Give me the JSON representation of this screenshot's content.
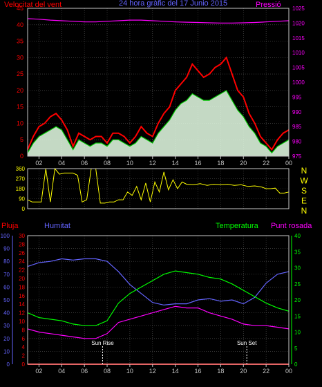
{
  "header": {
    "wind_title": "Velocitat del vent",
    "main_title": "24 hora gràfic del 17 Junio 2015",
    "pressure_title": "Pressió"
  },
  "bottom_header": {
    "rain": "Pluja",
    "humidity": "Humitat",
    "temperature": "Temperatura",
    "dew_point": "Punt rosada"
  },
  "colors": {
    "background": "#000000",
    "axis": "#c8c8c8",
    "grid": "#5a5a5a",
    "wind_axis": "#ff0000",
    "pressure_axis": "#ff00ff",
    "direction_axis": "#ffff00",
    "rain_axis": "#ff0000",
    "humidity_axis": "#6464ff",
    "temperature_axis": "#00ff00",
    "gust": "#ff0000",
    "wind_avg": "#00c800",
    "wind_fill": "#e6ffe6",
    "pressure": "#ff00ff",
    "direction": "#ffff00",
    "humidity": "#6464ff",
    "temperature": "#00ff00",
    "dew_point": "#ff00ff",
    "rain": "#ff0000"
  },
  "chart_data": [
    {
      "type": "line",
      "name": "wind-and-pressure",
      "title": "24 hora gràfic del 17 Junio 2015",
      "xlabel": "",
      "x_ticks": [
        "02",
        "04",
        "06",
        "08",
        "10",
        "12",
        "14",
        "16",
        "18",
        "20",
        "22",
        "00"
      ],
      "xlim": [
        1,
        24
      ],
      "y_left_label": "Velocitat del vent",
      "ylim_left": [
        0,
        45
      ],
      "y_left_ticks": [
        0,
        5,
        10,
        15,
        20,
        25,
        30,
        35,
        40,
        45
      ],
      "y_right_label": "Pressió",
      "ylim_right": [
        975,
        1025
      ],
      "y_right_ticks": [
        975,
        980,
        985,
        990,
        995,
        1000,
        1005,
        1010,
        1015,
        1020,
        1025
      ],
      "series": [
        {
          "name": "gust",
          "x": [
            1,
            1.5,
            2,
            2.5,
            3,
            3.5,
            4,
            4.5,
            5,
            5.5,
            6,
            6.5,
            7,
            7.5,
            8,
            8.5,
            9,
            9.5,
            10,
            10.5,
            11,
            11.5,
            12,
            12.5,
            13,
            13.5,
            14,
            14.5,
            15,
            15.5,
            16,
            16.5,
            17,
            17.5,
            18,
            18.5,
            19,
            19.5,
            20,
            20.5,
            21,
            21.5,
            22,
            22.5,
            23,
            23.5,
            24
          ],
          "values": [
            2,
            6,
            9,
            10,
            12,
            13,
            11,
            8,
            3,
            7,
            6,
            5,
            6,
            6,
            4,
            7,
            7,
            6,
            4,
            6,
            9,
            7,
            6,
            10,
            13,
            15,
            20,
            22,
            24,
            28,
            26,
            24,
            25,
            27,
            28,
            30,
            25,
            20,
            18,
            13,
            10,
            6,
            4,
            2,
            5,
            7,
            8
          ]
        },
        {
          "name": "average",
          "x": [
            1,
            1.5,
            2,
            2.5,
            3,
            3.5,
            4,
            4.5,
            5,
            5.5,
            6,
            6.5,
            7,
            7.5,
            8,
            8.5,
            9,
            9.5,
            10,
            10.5,
            11,
            11.5,
            12,
            12.5,
            13,
            13.5,
            14,
            14.5,
            15,
            15.5,
            16,
            16.5,
            17,
            17.5,
            18,
            18.5,
            19,
            19.5,
            20,
            20.5,
            21,
            21.5,
            22,
            22.5,
            23,
            23.5,
            24
          ],
          "values": [
            1,
            4,
            6,
            7,
            8,
            9,
            8,
            5,
            2,
            5,
            4,
            3,
            4,
            4,
            3,
            5,
            5,
            4,
            3,
            4,
            6,
            5,
            4,
            7,
            9,
            11,
            14,
            16,
            17,
            19,
            18,
            17,
            17,
            18,
            19,
            20,
            17,
            14,
            12,
            9,
            7,
            4,
            3,
            1,
            3,
            4,
            5
          ]
        },
        {
          "name": "pressure",
          "axis": "right",
          "x": [
            1,
            2,
            3,
            4,
            5,
            6,
            7,
            8,
            9,
            10,
            11,
            12,
            13,
            14,
            15,
            16,
            17,
            18,
            19,
            20,
            21,
            22,
            23,
            24
          ],
          "values": [
            1021.5,
            1021.3,
            1021.0,
            1020.8,
            1020.6,
            1020.4,
            1020.4,
            1020.6,
            1020.8,
            1021.0,
            1021.0,
            1020.8,
            1020.6,
            1020.4,
            1020.3,
            1020.2,
            1020.1,
            1020.0,
            1020.0,
            1020.1,
            1020.2,
            1020.4,
            1020.6,
            1020.8
          ]
        }
      ]
    },
    {
      "type": "line",
      "name": "wind-direction",
      "xlim": [
        1,
        24
      ],
      "ylim_left": [
        0,
        360
      ],
      "y_left_ticks": [
        0,
        90,
        180,
        270,
        360
      ],
      "y_right_ticks": [
        "N",
        "W",
        "S",
        "E",
        "N"
      ],
      "series": [
        {
          "name": "direction",
          "x": [
            1,
            1.4,
            1.8,
            2.2,
            2.6,
            3,
            3.4,
            3.8,
            4.2,
            4.6,
            5,
            5.4,
            5.8,
            6.2,
            6.6,
            7,
            7.4,
            7.8,
            8.2,
            8.6,
            9,
            9.4,
            9.8,
            10.2,
            10.6,
            11,
            11.4,
            11.8,
            12.2,
            12.6,
            13,
            13.4,
            13.8,
            14.2,
            14.6,
            15,
            15.6,
            16.2,
            16.8,
            17.4,
            18,
            18.6,
            19.2,
            19.8,
            20.4,
            21,
            21.6,
            22,
            22.4,
            22.8,
            23.2,
            23.6,
            24
          ],
          "values": [
            80,
            60,
            60,
            60,
            360,
            60,
            360,
            310,
            320,
            320,
            320,
            300,
            60,
            80,
            360,
            360,
            50,
            50,
            60,
            60,
            80,
            80,
            150,
            120,
            200,
            80,
            230,
            60,
            240,
            150,
            330,
            170,
            260,
            180,
            240,
            220,
            215,
            225,
            210,
            220,
            215,
            220,
            210,
            215,
            200,
            205,
            195,
            180,
            180,
            185,
            140,
            140,
            150
          ]
        }
      ]
    },
    {
      "type": "line",
      "name": "rain-humidity-temperature",
      "x_ticks": [
        "02",
        "04",
        "06",
        "08",
        "10",
        "12",
        "14",
        "16",
        "18",
        "20",
        "22",
        "00"
      ],
      "xlim": [
        1,
        24
      ],
      "y_left_label": "Pluja",
      "ylim_left": [
        0,
        30
      ],
      "y_left_ticks": [
        0,
        2,
        4,
        6,
        8,
        10,
        12,
        14,
        16,
        18,
        20,
        22,
        24,
        26,
        28,
        30
      ],
      "y_humidity_label": "Humitat",
      "ylim_humidity": [
        0,
        100
      ],
      "y_humidity_ticks": [
        0,
        10,
        20,
        30,
        40,
        50,
        60,
        70,
        80,
        90,
        100
      ],
      "y_right_label": "Temperatura",
      "ylim_right": [
        0,
        40
      ],
      "y_right_ticks": [
        0,
        5,
        10,
        15,
        20,
        25,
        30,
        35,
        40
      ],
      "dew_point_label": "Punt rosada",
      "annotations": [
        {
          "text": "Sun Rise",
          "x": 7.6
        },
        {
          "text": "Sun Set",
          "x": 20.3
        }
      ],
      "series": [
        {
          "name": "humidity",
          "axis": "humidity",
          "x": [
            1,
            2,
            3,
            4,
            5,
            6,
            7,
            8,
            9,
            10,
            11,
            12,
            13,
            14,
            15,
            16,
            17,
            18,
            19,
            20,
            21,
            22,
            23,
            24
          ],
          "values": [
            76,
            79,
            80,
            82,
            81,
            82,
            82,
            80,
            72,
            62,
            55,
            48,
            46,
            47,
            47,
            50,
            51,
            49,
            50,
            47,
            52,
            63,
            70,
            72
          ]
        },
        {
          "name": "temperature",
          "axis": "right",
          "x": [
            1,
            2,
            3,
            4,
            5,
            6,
            7,
            8,
            9,
            10,
            11,
            12,
            13,
            14,
            15,
            16,
            17,
            18,
            19,
            20,
            21,
            22,
            23,
            24
          ],
          "values": [
            16,
            14.5,
            14,
            13.5,
            12.5,
            12,
            12,
            13.5,
            19,
            22,
            24,
            26,
            28,
            29,
            28.5,
            28,
            27,
            26.5,
            25,
            23,
            21,
            19,
            17.5,
            16.5
          ]
        },
        {
          "name": "dew-point",
          "axis": "right",
          "x": [
            1,
            2,
            3,
            4,
            5,
            6,
            7,
            8,
            9,
            10,
            11,
            12,
            13,
            14,
            15,
            16,
            17,
            18,
            19,
            20,
            21,
            22,
            23,
            24
          ],
          "values": [
            11,
            10,
            9.5,
            9,
            8.5,
            8,
            8,
            9.5,
            13,
            14,
            15,
            16,
            17,
            18,
            17.5,
            17.5,
            16,
            15,
            14,
            12.5,
            12,
            12,
            11.5,
            11
          ]
        },
        {
          "name": "rain",
          "axis": "left",
          "x": [
            1,
            24
          ],
          "values": [
            0,
            0
          ]
        }
      ]
    }
  ]
}
